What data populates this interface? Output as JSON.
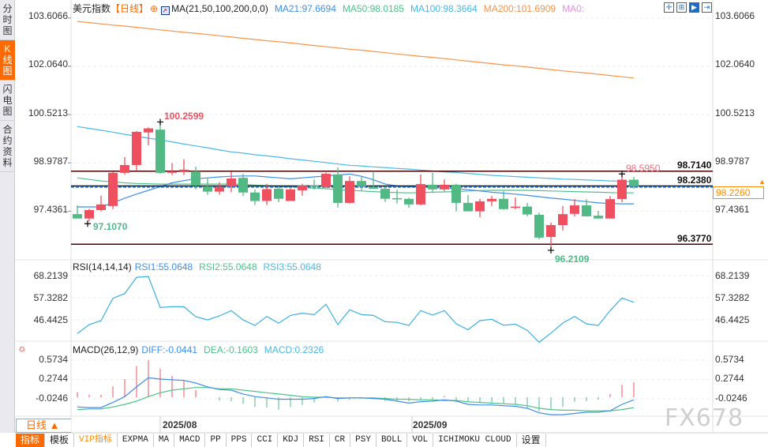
{
  "sidebar": {
    "items": [
      {
        "label": "分时图",
        "active": false
      },
      {
        "label": "K线图",
        "active": true
      },
      {
        "label": "闪电图",
        "active": false
      },
      {
        "label": "合约资料",
        "active": false
      }
    ]
  },
  "header": {
    "symbol": "美元指数",
    "period": "【日线】",
    "ma_params": "MA(21,50,100,200,0,0)",
    "ma21": "MA21:97.6694",
    "ma50": "MA50:98.0185",
    "ma100": "MA100:98.3664",
    "ma200": "MA200:101.6909",
    "ma0": "MA0:",
    "tool_icons": [
      "crosshair-icon",
      "zoom-range-icon",
      "play-icon",
      "jump-end-icon"
    ]
  },
  "colors": {
    "up": "#ef5060",
    "down": "#52b985",
    "ma21": "#3d8ee8",
    "ma50": "#4cc38a",
    "ma100": "#4ab8e8",
    "ma200": "#f7934c",
    "ma0": "#e68ee6",
    "accent": "#ff6a00",
    "level": "#4a0000"
  },
  "main": {
    "y_axis_labels": [
      "103.6066",
      "102.0640",
      "100.5213",
      "98.9787",
      "97.4361"
    ],
    "ylim": [
      95.905,
      103.88
    ],
    "current_price": "98.2260",
    "levels": [
      {
        "value": 98.714,
        "label": "98.7140"
      },
      {
        "value": 98.238,
        "label": "98.2380"
      },
      {
        "value": 96.377,
        "label": "96.3770"
      }
    ],
    "annotations": {
      "high": "100.2599",
      "low": "97.1070",
      "recent_high": "98.5950",
      "recent_low": "96.2109"
    },
    "candles": [
      [
        97.34,
        97.62,
        97.2,
        97.2
      ],
      [
        97.2,
        97.51,
        97.11,
        97.47
      ],
      [
        97.47,
        97.93,
        97.43,
        97.65
      ],
      [
        97.6,
        98.7,
        97.5,
        98.66
      ],
      [
        98.66,
        99.16,
        98.61,
        98.91
      ],
      [
        98.91,
        100.0,
        98.74,
        99.97
      ],
      [
        99.95,
        100.11,
        99.54,
        100.08
      ],
      [
        100.04,
        100.26,
        98.63,
        98.66
      ],
      [
        98.66,
        98.97,
        98.59,
        98.71
      ],
      [
        98.71,
        99.09,
        98.59,
        98.76
      ],
      [
        98.71,
        98.86,
        98.13,
        98.25
      ],
      [
        98.23,
        98.48,
        97.96,
        98.06
      ],
      [
        98.06,
        98.36,
        97.96,
        98.21
      ],
      [
        98.23,
        98.69,
        98.04,
        98.48
      ],
      [
        98.5,
        98.63,
        97.92,
        98.03
      ],
      [
        98.03,
        98.13,
        97.63,
        97.76
      ],
      [
        97.76,
        98.31,
        97.63,
        98.14
      ],
      [
        98.15,
        98.23,
        97.72,
        97.83
      ],
      [
        97.76,
        98.17,
        97.76,
        98.13
      ],
      [
        98.1,
        98.31,
        97.93,
        98.25
      ],
      [
        98.25,
        98.45,
        98.13,
        98.23
      ],
      [
        98.21,
        98.67,
        98.18,
        98.63
      ],
      [
        98.61,
        98.84,
        97.55,
        97.7
      ],
      [
        97.7,
        98.55,
        97.68,
        98.4
      ],
      [
        98.4,
        98.55,
        98.07,
        98.23
      ],
      [
        98.21,
        98.71,
        98.15,
        98.15
      ],
      [
        98.15,
        98.23,
        97.73,
        97.83
      ],
      [
        97.85,
        98.13,
        97.68,
        97.83
      ],
      [
        97.83,
        97.87,
        97.54,
        97.65
      ],
      [
        97.65,
        98.61,
        97.62,
        98.3
      ],
      [
        98.28,
        98.66,
        98.02,
        98.13
      ],
      [
        98.13,
        98.45,
        98.07,
        98.28
      ],
      [
        98.28,
        98.31,
        97.43,
        97.7
      ],
      [
        97.7,
        97.95,
        97.43,
        97.43
      ],
      [
        97.43,
        97.83,
        97.24,
        97.75
      ],
      [
        97.75,
        97.92,
        97.6,
        97.83
      ],
      [
        97.83,
        98.07,
        97.48,
        97.5
      ],
      [
        97.54,
        97.87,
        97.5,
        97.58
      ],
      [
        97.58,
        97.7,
        97.27,
        97.33
      ],
      [
        97.32,
        97.39,
        96.54,
        96.59
      ],
      [
        96.61,
        97.07,
        96.21,
        96.99
      ],
      [
        96.99,
        97.6,
        96.82,
        97.34
      ],
      [
        97.35,
        97.82,
        97.27,
        97.62
      ],
      [
        97.62,
        97.82,
        97.27,
        97.27
      ],
      [
        97.29,
        97.44,
        97.2,
        97.2
      ],
      [
        97.2,
        97.92,
        97.2,
        97.82
      ],
      [
        97.82,
        98.6,
        97.72,
        98.44
      ],
      [
        98.44,
        98.53,
        98.15,
        98.23
      ]
    ],
    "ma21": [
      97.57,
      97.57,
      97.57,
      97.7,
      97.85,
      97.98,
      98.1,
      98.22,
      98.34,
      98.41,
      98.47,
      98.5,
      98.53,
      98.55,
      98.56,
      98.56,
      98.53,
      98.5,
      98.47,
      98.5,
      98.53,
      98.56,
      98.59,
      98.62,
      98.55,
      98.44,
      98.3,
      98.24,
      98.22,
      98.21,
      98.19,
      98.17,
      98.15,
      98.12,
      98.08,
      98.04,
      98.01,
      97.98,
      97.94,
      97.9,
      97.85,
      97.82,
      97.78,
      97.74,
      97.7,
      97.68,
      97.67,
      97.67
    ],
    "ma50": [
      98.5,
      98.45,
      98.4,
      98.37,
      98.34,
      98.32,
      98.31,
      98.3,
      98.3,
      98.3,
      98.3,
      98.3,
      98.3,
      98.3,
      98.29,
      98.27,
      98.25,
      98.23,
      98.21,
      98.19,
      98.17,
      98.15,
      98.12,
      98.1,
      98.08,
      98.06,
      98.04,
      98.03,
      98.02,
      98.03,
      98.04,
      98.05,
      98.06,
      98.08,
      98.09,
      98.1,
      98.1,
      98.1,
      98.1,
      98.09,
      98.08,
      98.07,
      98.06,
      98.05,
      98.04,
      98.03,
      98.02,
      98.02
    ],
    "ma100": [
      100.14,
      100.08,
      100.02,
      99.96,
      99.89,
      99.83,
      99.77,
      99.71,
      99.65,
      99.58,
      99.52,
      99.46,
      99.39,
      99.33,
      99.29,
      99.24,
      99.2,
      99.16,
      99.11,
      99.07,
      99.03,
      98.99,
      98.94,
      98.9,
      98.88,
      98.85,
      98.83,
      98.8,
      98.78,
      98.75,
      98.72,
      98.69,
      98.67,
      98.64,
      98.61,
      98.58,
      98.56,
      98.54,
      98.52,
      98.5,
      98.48,
      98.46,
      98.45,
      98.43,
      98.42,
      98.4,
      98.39,
      98.37
    ],
    "ma200": [
      103.5,
      103.46,
      103.42,
      103.38,
      103.35,
      103.31,
      103.27,
      103.23,
      103.19,
      103.15,
      103.12,
      103.08,
      103.04,
      103.0,
      102.96,
      102.92,
      102.88,
      102.85,
      102.81,
      102.77,
      102.73,
      102.69,
      102.65,
      102.61,
      102.58,
      102.54,
      102.5,
      102.46,
      102.42,
      102.38,
      102.35,
      102.31,
      102.27,
      102.23,
      102.19,
      102.15,
      102.11,
      102.08,
      102.04,
      102.0,
      101.96,
      101.92,
      101.88,
      101.85,
      101.81,
      101.77,
      101.73,
      101.69
    ]
  },
  "rsi": {
    "params": "RSI(14,14,14)",
    "rsi1": "RSI1:55.0648",
    "rsi2": "RSI2:55.0648",
    "rsi3": "RSI3:55.0648",
    "y_axis_labels": [
      "68.2139",
      "57.3282",
      "46.4425"
    ],
    "values": [
      39.71,
      44.1,
      46.05,
      57.06,
      59.4,
      67.4,
      67.8,
      52.5,
      52.9,
      52.9,
      48.0,
      46.4,
      48.4,
      51.0,
      46.4,
      43.7,
      48.1,
      44.8,
      48.6,
      49.7,
      49.0,
      54.1,
      44.1,
      51.4,
      49.0,
      48.6,
      45.5,
      45.2,
      43.7,
      51.0,
      48.8,
      51.0,
      44.5,
      41.6,
      46.05,
      46.7,
      43.8,
      44.3,
      41.3,
      35.4,
      39.9,
      44.9,
      48.1,
      44.5,
      43.7,
      51.0,
      57.2,
      55.06
    ]
  },
  "macd": {
    "params": "MACD(26,12,9)",
    "diff": "DIFF:-0.0441",
    "dea": "DEA:-0.1603",
    "macd": "MACD:0.2326",
    "y_axis_labels": [
      "0.5734",
      "0.2744",
      "-0.0246"
    ],
    "diff_values": [
      -0.15,
      -0.16,
      -0.16,
      -0.08,
      0.01,
      0.16,
      0.3,
      0.28,
      0.27,
      0.26,
      0.22,
      0.16,
      0.12,
      0.11,
      0.05,
      0.01,
      -0.01,
      -0.03,
      -0.03,
      -0.03,
      -0.02,
      0.01,
      -0.02,
      -0.01,
      -0.01,
      -0.02,
      -0.03,
      -0.06,
      -0.09,
      -0.07,
      -0.06,
      -0.04,
      -0.06,
      -0.11,
      -0.12,
      -0.12,
      -0.13,
      -0.14,
      -0.17,
      -0.24,
      -0.27,
      -0.27,
      -0.25,
      -0.23,
      -0.23,
      -0.21,
      -0.11,
      -0.04
    ],
    "dea_values": [
      -0.19,
      -0.18,
      -0.18,
      -0.15,
      -0.11,
      -0.06,
      0.01,
      0.07,
      0.11,
      0.13,
      0.15,
      0.15,
      0.13,
      0.13,
      0.11,
      0.09,
      0.07,
      0.05,
      0.03,
      0.01,
      0.0,
      0.0,
      -0.01,
      -0.01,
      -0.01,
      -0.01,
      -0.02,
      -0.03,
      -0.03,
      -0.04,
      -0.04,
      -0.05,
      -0.05,
      -0.07,
      -0.08,
      -0.09,
      -0.1,
      -0.11,
      -0.13,
      -0.17,
      -0.19,
      -0.2,
      -0.2,
      -0.21,
      -0.21,
      -0.21,
      -0.19,
      -0.16
    ],
    "hist_values": [
      0.08,
      0.04,
      0.04,
      0.17,
      0.28,
      0.48,
      0.57,
      0.44,
      0.33,
      0.26,
      0.11,
      0.0,
      -0.05,
      -0.06,
      -0.1,
      -0.15,
      -0.16,
      -0.19,
      -0.15,
      -0.12,
      -0.08,
      -0.01,
      -0.07,
      -0.04,
      -0.02,
      -0.02,
      -0.06,
      -0.07,
      -0.06,
      -0.03,
      -0.03,
      0.02,
      -0.05,
      -0.08,
      -0.09,
      -0.08,
      -0.1,
      -0.12,
      -0.17,
      -0.22,
      -0.2,
      -0.15,
      -0.07,
      -0.06,
      -0.04,
      0.05,
      0.19,
      0.23
    ]
  },
  "x_axis": {
    "period_selector": "日线 ▲",
    "labels": [
      "2025/08",
      "2025/09"
    ]
  },
  "toolbar": {
    "items": [
      "指标",
      "模板",
      "VIP指标",
      "EXPMA",
      "MA",
      "MACD",
      "PP",
      "PPS",
      "CCI",
      "KDJ",
      "RSI",
      "CR",
      "PSY",
      "BOLL",
      "VOL",
      "ICHIMOKU CLOUD",
      "设置"
    ]
  },
  "watermark": "FX678"
}
